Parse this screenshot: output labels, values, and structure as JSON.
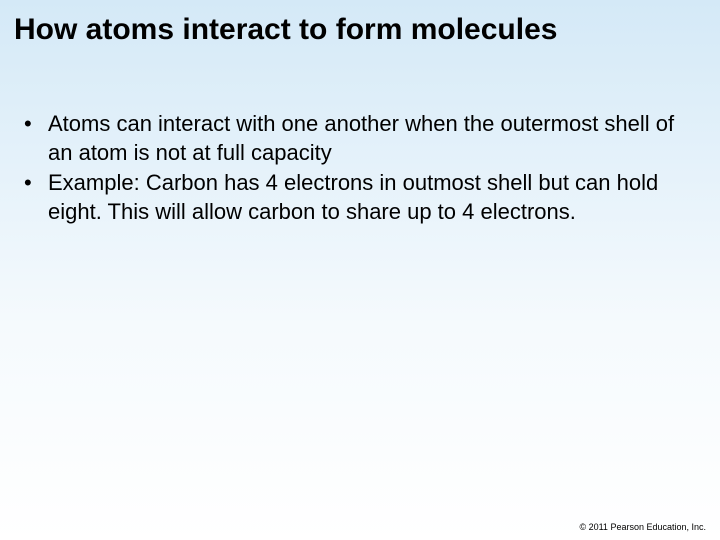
{
  "slide": {
    "title": "How atoms interact to form molecules",
    "bullets": [
      "Atoms can interact with one another when the outermost shell of an atom is not at full capacity",
      "Example: Carbon has 4 electrons in outmost shell but can hold eight.  This will allow carbon to share up to 4 electrons."
    ],
    "footer": "© 2011 Pearson Education, Inc."
  },
  "style": {
    "background_gradient_top": "#d4e9f7",
    "background_gradient_bottom": "#ffffff",
    "title_color": "#000000",
    "title_fontsize": 30,
    "title_fontweight": "bold",
    "body_color": "#000000",
    "body_fontsize": 22,
    "bullet_marker": "•",
    "footer_fontsize": 9,
    "footer_color": "#000000",
    "font_family": "Arial"
  }
}
